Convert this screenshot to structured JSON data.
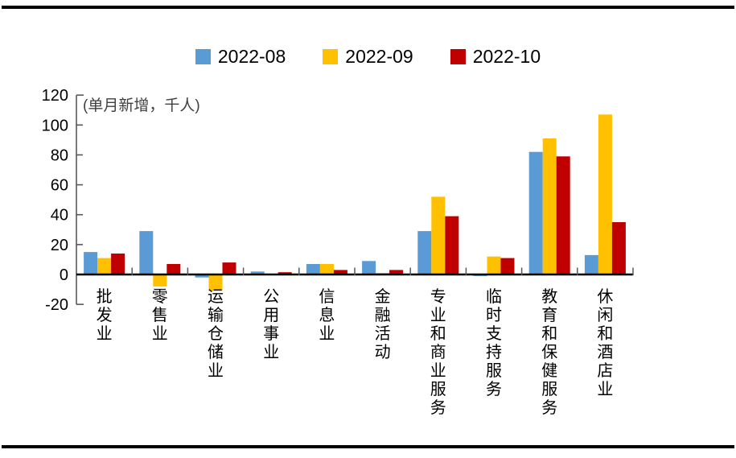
{
  "chart_data": {
    "type": "bar",
    "title": "",
    "annotation": "(单月新增，千人)",
    "categories": [
      "批发业",
      "零售业",
      "运输仓储业",
      "公用事业",
      "信息业",
      "金融活动",
      "专业和商业服务",
      "临时支持服务",
      "教育和保健服务",
      "休闲和酒店业"
    ],
    "series": [
      {
        "name": "2022-08",
        "color": "#5B9BD5",
        "values": [
          15,
          29,
          -2,
          2,
          7,
          9,
          29,
          -1,
          82,
          13
        ]
      },
      {
        "name": "2022-09",
        "color": "#FFC000",
        "values": [
          11,
          -8,
          -11,
          0.5,
          7,
          1,
          52,
          12,
          91,
          107
        ]
      },
      {
        "name": "2022-10",
        "color": "#C00000",
        "values": [
          14,
          7,
          8,
          1.5,
          3,
          3,
          39,
          11,
          79,
          35
        ]
      }
    ],
    "ylim": [
      -20,
      120
    ],
    "yticks": [
      120,
      100,
      80,
      60,
      40,
      20,
      0,
      -20
    ],
    "ylabel": "",
    "xlabel": "",
    "grid": false,
    "legend_position": "top-center",
    "axis_color": "#595959",
    "zero_line_color": "#000000"
  }
}
